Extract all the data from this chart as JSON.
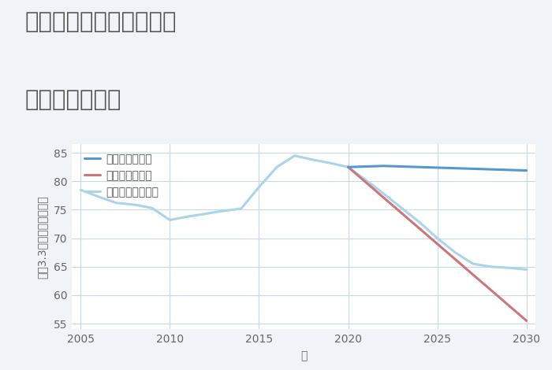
{
  "title_line1": "兵庫県西宮市柏堂西町の",
  "title_line2": "土地の価格推移",
  "xlabel": "年",
  "bg_color": "#f0f4f8",
  "plot_bg_color": "#ffffff",
  "grid_color": "#c8d8e8",
  "good_scenario": {
    "label": "グッドシナリオ",
    "color": "#5599cc",
    "years": [
      2020,
      2021,
      2022,
      2023,
      2024,
      2025,
      2026,
      2027,
      2028,
      2029,
      2030
    ],
    "values": [
      82.5,
      82.6,
      82.7,
      82.6,
      82.5,
      82.4,
      82.3,
      82.2,
      82.1,
      82.0,
      81.9
    ]
  },
  "bad_scenario": {
    "label": "バッドシナリオ",
    "color": "#cc7777",
    "years": [
      2020,
      2030
    ],
    "values": [
      82.5,
      55.5
    ]
  },
  "normal_scenario": {
    "label": "ノーマルシナリオ",
    "color": "#aad4ea",
    "years": [
      2005,
      2006,
      2007,
      2008,
      2009,
      2010,
      2011,
      2012,
      2013,
      2014,
      2015,
      2016,
      2017,
      2018,
      2019,
      2020,
      2021,
      2022,
      2023,
      2024,
      2025,
      2026,
      2027,
      2028,
      2029,
      2030
    ],
    "values": [
      78.5,
      77.3,
      76.2,
      75.9,
      75.3,
      73.2,
      73.8,
      74.3,
      74.8,
      75.2,
      79.0,
      82.5,
      84.5,
      83.8,
      83.2,
      82.5,
      80.2,
      77.8,
      75.3,
      72.8,
      70.0,
      67.5,
      65.5,
      65.0,
      64.8,
      64.5
    ]
  },
  "xlim": [
    2004.5,
    2030.5
  ],
  "ylim": [
    54,
    86.5
  ],
  "yticks": [
    55,
    60,
    65,
    70,
    75,
    80,
    85
  ],
  "xticks": [
    2005,
    2010,
    2015,
    2020,
    2025,
    2030
  ],
  "title_fontsize": 21,
  "axis_label_fontsize": 10,
  "tick_fontsize": 10,
  "legend_fontsize": 10,
  "line_width": 2.2,
  "title_color": "#555555",
  "tick_color": "#666666",
  "axis_label_color": "#666666"
}
